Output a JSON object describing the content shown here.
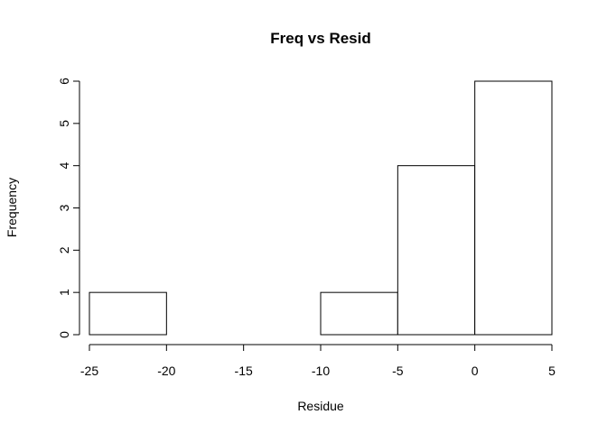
{
  "chart_data": {
    "type": "bar",
    "title": "Freq vs Resid",
    "xlabel": "Residue",
    "ylabel": "Frequency",
    "bins": [
      {
        "from": -25,
        "to": -20,
        "count": 1
      },
      {
        "from": -20,
        "to": -15,
        "count": 0
      },
      {
        "from": -15,
        "to": -10,
        "count": 0
      },
      {
        "from": -10,
        "to": -5,
        "count": 1
      },
      {
        "from": -5,
        "to": 0,
        "count": 4
      },
      {
        "from": 0,
        "to": 5,
        "count": 6
      }
    ],
    "xlim": [
      -25,
      5
    ],
    "ylim": [
      0,
      6
    ],
    "x_ticks": [
      "-25",
      "-20",
      "-15",
      "-10",
      "-5",
      "0",
      "5"
    ],
    "y_ticks": [
      "0",
      "1",
      "2",
      "3",
      "4",
      "5",
      "6"
    ],
    "grid": false,
    "legend": "none",
    "bar_fill": "#ffffff",
    "bar_stroke": "#000000"
  }
}
